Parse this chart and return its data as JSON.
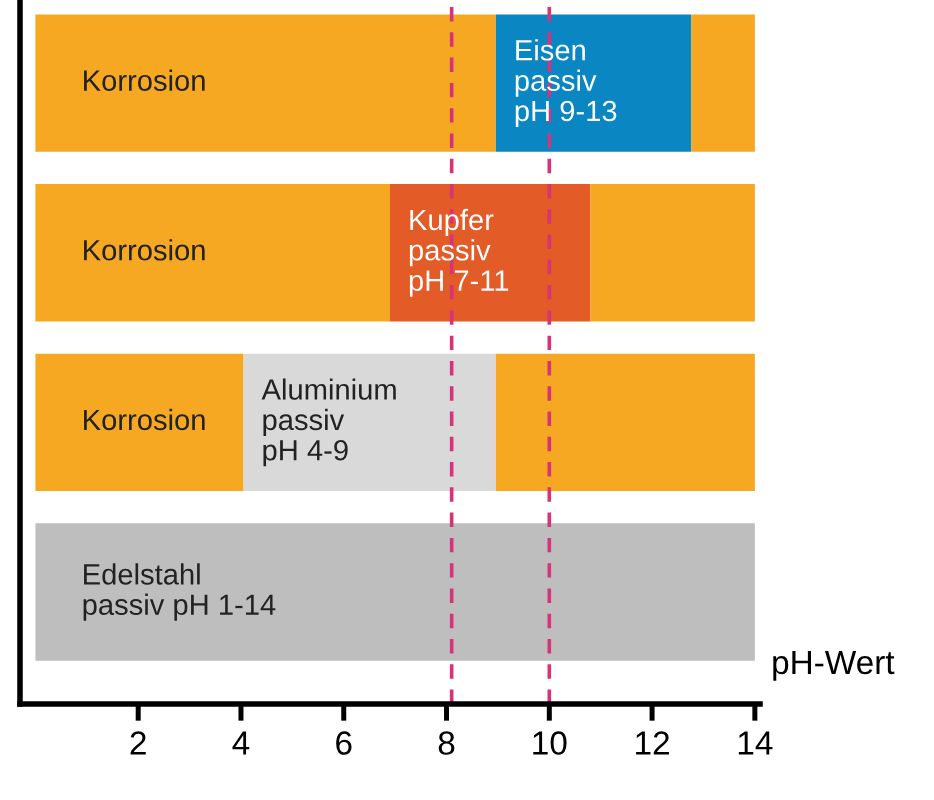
{
  "chart_data": {
    "type": "bar",
    "orientation": "horizontal",
    "stacked": true,
    "categories": [
      null,
      null,
      null,
      null
    ],
    "series": [
      {
        "color": "#f6a823",
        "values": [
          8.96,
          6.9,
          4.05,
          null
        ],
        "value_labels": [
          "Korrosion",
          "Korrosion",
          "Korrosion",
          null
        ]
      },
      {
        "colors": [
          "#0a86c2",
          "#e35b26",
          "#d9d9d9",
          "#bebebe"
        ],
        "values": [
          3.8,
          3.9,
          4.91,
          14
        ],
        "value_labels": [
          "Eisen\npassiv\npH 9-13",
          "Kupfer\npassiv\npH 7-11",
          "Aluminium\npassiv\npH 4-9",
          "Edelstahl\npassiv pH 1-14"
        ]
      },
      {
        "color": "#f6a823",
        "values": [
          1.24,
          3.2,
          5.04,
          null
        ]
      }
    ],
    "xlabel": "pH-Wert",
    "xlim": [
      -0.3,
      14.1
    ],
    "xticks": [
      2,
      4,
      6,
      8,
      10,
      12,
      14
    ],
    "tick_labels": "x",
    "grid": false,
    "legend": false,
    "ref_lines": [
      {
        "axis": "x",
        "value": 8.1,
        "color": "#d6337a",
        "line_style": "dashed"
      },
      {
        "axis": "x",
        "value": 10,
        "color": "#d6337a",
        "line_style": "dashed"
      }
    ]
  }
}
